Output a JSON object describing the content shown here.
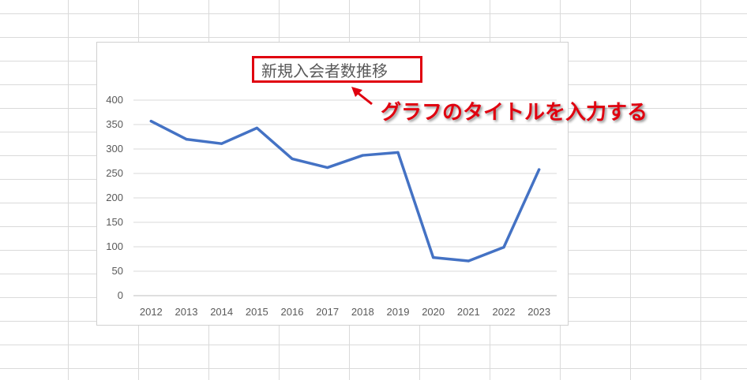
{
  "chart_data": {
    "type": "line",
    "title": "新規入会者数推移",
    "categories": [
      "2012",
      "2013",
      "2014",
      "2015",
      "2016",
      "2017",
      "2018",
      "2019",
      "2020",
      "2021",
      "2022",
      "2023"
    ],
    "series": [
      {
        "values": [
          357,
          320,
          311,
          343,
          280,
          262,
          287,
          293,
          78,
          71,
          99,
          258
        ],
        "color": "#4472c4"
      }
    ],
    "ylim": [
      0,
      400
    ],
    "yticks": [
      0,
      50,
      100,
      150,
      200,
      250,
      300,
      350,
      400
    ],
    "grid": true,
    "legend": "none"
  },
  "annotation": {
    "text": "グラフのタイトルを入力する",
    "color": "#e0000f"
  }
}
